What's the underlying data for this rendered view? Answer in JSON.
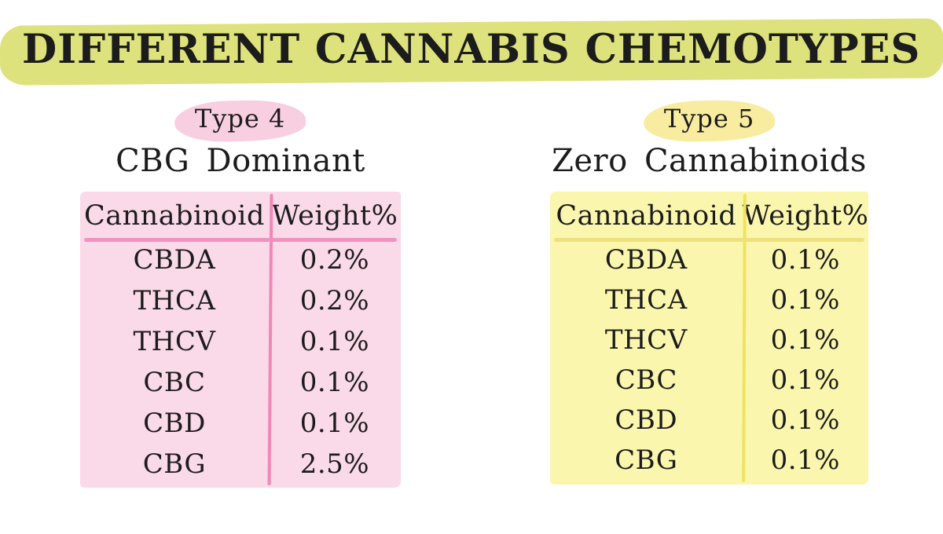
{
  "palette": {
    "page_background": "#ffffff",
    "ink": "#1c1c1c",
    "title_highlight": "#dde27c",
    "type4_highlight": "#f8cee1",
    "type4_table_background": "#fad9e8",
    "type4_table_lines": "#f287b7",
    "type5_highlight": "#f8eca1",
    "type5_table_background": "#fbf6ae",
    "type5_table_lines": "#f1e163"
  },
  "title": {
    "text": "DIFFERENT CANNABIS CHEMOTYPES"
  },
  "sections": [
    {
      "type_label": "Type 4",
      "subtitle": "CBG Dominant",
      "columns": [
        "Cannabinoid",
        "Weight%"
      ],
      "rows": [
        [
          "CBDA",
          "0.2%"
        ],
        [
          "THCA",
          "0.2%"
        ],
        [
          "THCV",
          "0.1%"
        ],
        [
          "CBC",
          "0.1%"
        ],
        [
          "CBD",
          "0.1%"
        ],
        [
          "CBG",
          "2.5%"
        ]
      ]
    },
    {
      "type_label": "Type 5",
      "subtitle": "Zero Cannabinoids",
      "columns": [
        "Cannabinoid",
        "Weight%"
      ],
      "rows": [
        [
          "CBDA",
          "0.1%"
        ],
        [
          "THCA",
          "0.1%"
        ],
        [
          "THCV",
          "0.1%"
        ],
        [
          "CBC",
          "0.1%"
        ],
        [
          "CBD",
          "0.1%"
        ],
        [
          "CBG",
          "0.1%"
        ]
      ]
    }
  ],
  "chart_data": [
    {
      "type": "table",
      "title": "Type 4 — CBG Dominant",
      "columns": [
        "Cannabinoid",
        "Weight%"
      ],
      "unit": "% by weight",
      "rows": [
        [
          "CBDA",
          0.2
        ],
        [
          "THCA",
          0.2
        ],
        [
          "THCV",
          0.1
        ],
        [
          "CBC",
          0.1
        ],
        [
          "CBD",
          0.1
        ],
        [
          "CBG",
          2.5
        ]
      ]
    },
    {
      "type": "table",
      "title": "Type 5 — Zero Cannabinoids",
      "columns": [
        "Cannabinoid",
        "Weight%"
      ],
      "unit": "% by weight",
      "rows": [
        [
          "CBDA",
          0.1
        ],
        [
          "THCA",
          0.1
        ],
        [
          "THCV",
          0.1
        ],
        [
          "CBC",
          0.1
        ],
        [
          "CBD",
          0.1
        ],
        [
          "CBG",
          0.1
        ]
      ]
    }
  ]
}
